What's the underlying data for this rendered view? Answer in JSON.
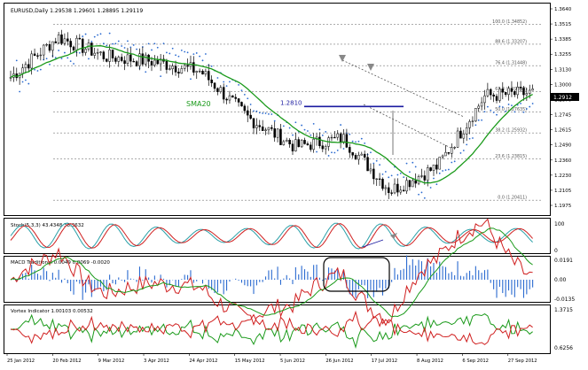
{
  "header": {
    "symbol_line": "EURUSD,Daily  1.29538 1.29601 1.28895 1.29119"
  },
  "price_axis_labels": [
    "1.3640",
    "1.3515",
    "1.3385",
    "1.3255",
    "1.3130",
    "1.3000",
    "1.2870",
    "1.2745",
    "1.2615",
    "1.2490",
    "1.2360",
    "1.2230",
    "1.2105",
    "1.1975"
  ],
  "current_price_tag": "1.2912",
  "fibonacci_levels": [
    {
      "label": "100.0 (1.34852)",
      "value": 1.34852
    },
    {
      "label": "88.6 (1.33207)",
      "value": 1.33207
    },
    {
      "label": "76.4 (1.31448)",
      "value": 1.31448
    },
    {
      "label": "61.8 (1.29338)",
      "value": 1.29338
    },
    {
      "label": "50.0 (1.27635)",
      "value": 1.27635
    },
    {
      "label": "38.2 (1.25932)",
      "value": 1.25932
    },
    {
      "label": "23.6 (1.23815)",
      "value": 1.23815
    },
    {
      "label": "0.0 (1.20411)",
      "value": 1.20411
    }
  ],
  "annotations": {
    "sma_label": "SMA20",
    "level_label": "1.2810",
    "level_value": 1.281
  },
  "stoch": {
    "header": "Stoch(5,3,3) 43.4348 38.3632",
    "axis_labels": [
      "100",
      "0"
    ]
  },
  "macd": {
    "header": "MACD Traditional 0.0049 0.0069 -0.0020",
    "axis_labels": [
      "0.0191",
      "0.00",
      "-0.0135"
    ]
  },
  "vortex": {
    "header": "Vortex Indicator 1.00103 0.00532",
    "axis_labels": [
      "1.3715",
      "0.6256"
    ]
  },
  "date_labels": [
    "25 Jan 2012",
    "20 Feb 2012",
    "9 Mar 2012",
    "3 Apr 2012",
    "24 Apr 2012",
    "15 May 2012",
    "5 Jun 2012",
    "26 Jun 2012",
    "17 Jul 2012",
    "8 Aug 2012",
    "6 Sep 2012",
    "27 Sep 2012"
  ],
  "chart_data": {
    "type": "candlestick",
    "instrument": "EURUSD",
    "timeframe": "Daily",
    "x": [
      "25 Jan 2012",
      "20 Feb 2012",
      "9 Mar 2012",
      "3 Apr 2012",
      "24 Apr 2012",
      "15 May 2012",
      "5 Jun 2012",
      "26 Jun 2012",
      "17 Jul 2012",
      "8 Aug 2012",
      "6 Sep 2012",
      "27 Sep 2012"
    ],
    "series": [
      {
        "name": "EURUSD",
        "values": [
          1.305,
          1.338,
          1.322,
          1.318,
          1.31,
          1.272,
          1.248,
          1.255,
          1.212,
          1.232,
          1.29,
          1.292
        ]
      },
      {
        "name": "SMA20",
        "values": [
          1.3,
          1.32,
          1.322,
          1.316,
          1.315,
          1.285,
          1.255,
          1.252,
          1.225,
          1.228,
          1.275,
          1.29
        ]
      }
    ],
    "last": {
      "open": 1.29538,
      "high": 1.29601,
      "low": 1.28895,
      "close": 1.29119
    },
    "ylim": [
      1.1975,
      1.364
    ],
    "grid": false
  }
}
